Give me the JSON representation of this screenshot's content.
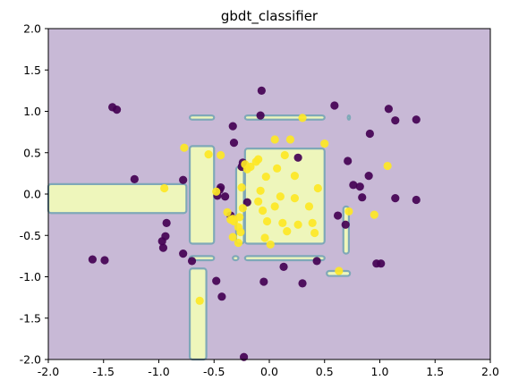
{
  "chart_data": {
    "type": "scatter",
    "title": "gbdt_classifier",
    "xlabel": "",
    "ylabel": "",
    "xlim": [
      -2.0,
      2.0
    ],
    "ylim": [
      -2.0,
      2.0
    ],
    "x_ticks": [
      "-2.0",
      "-1.5",
      "-1.0",
      "-0.5",
      "0.0",
      "0.5",
      "1.0",
      "1.5",
      "2.0"
    ],
    "y_ticks": [
      "2.0",
      "1.5",
      "1.0",
      "0.5",
      "0.0",
      "-0.5",
      "-1.0",
      "-1.5",
      "-2.0"
    ],
    "grid": false,
    "background_color": "#c8b9d6",
    "region_color": "#eef6bb",
    "contour_color": "#7fa8b8",
    "class0_color": "#440154",
    "class1_color": "#fde725",
    "decision_regions": [
      {
        "x": [
          -2.0,
          -0.75
        ],
        "y": [
          -0.23,
          0.12
        ]
      },
      {
        "x": [
          -0.72,
          -0.5
        ],
        "y": [
          -0.6,
          0.58
        ]
      },
      {
        "x": [
          -0.72,
          -0.57
        ],
        "y": [
          -2.0,
          -0.9
        ]
      },
      {
        "x": [
          -0.72,
          -0.5
        ],
        "y": [
          -0.8,
          -0.75
        ]
      },
      {
        "x": [
          -0.33,
          -0.28
        ],
        "y": [
          -0.8,
          -0.75
        ]
      },
      {
        "x": [
          -0.22,
          0.5
        ],
        "y": [
          -0.8,
          -0.75
        ]
      },
      {
        "x": [
          -0.72,
          -0.5
        ],
        "y": [
          0.9,
          0.95
        ]
      },
      {
        "x": [
          -0.22,
          0.5
        ],
        "y": [
          0.9,
          0.95
        ]
      },
      {
        "x": [
          0.71,
          0.73
        ],
        "y": [
          0.9,
          0.95
        ]
      },
      {
        "x": [
          -0.3,
          -0.23
        ],
        "y": [
          -0.6,
          0.33
        ]
      },
      {
        "x": [
          -0.22,
          0.5
        ],
        "y": [
          -0.6,
          0.55
        ]
      },
      {
        "x": [
          0.67,
          0.72
        ],
        "y": [
          -0.72,
          -0.15
        ]
      },
      {
        "x": [
          0.52,
          0.73
        ],
        "y": [
          -0.99,
          -0.93
        ]
      }
    ],
    "series": [
      {
        "class": 0,
        "points": [
          [
            -1.42,
            1.05
          ],
          [
            -1.38,
            1.02
          ],
          [
            -1.22,
            0.18
          ],
          [
            -0.97,
            -0.57
          ],
          [
            -0.96,
            -0.65
          ],
          [
            -0.94,
            -0.51
          ],
          [
            -0.93,
            -0.35
          ],
          [
            -0.78,
            0.17
          ],
          [
            -0.78,
            -0.72
          ],
          [
            -0.7,
            -0.81
          ],
          [
            -0.47,
            -0.02
          ],
          [
            -0.45,
            0.05
          ],
          [
            -0.44,
            0.08
          ],
          [
            -0.4,
            -0.03
          ],
          [
            -0.35,
            -0.26
          ],
          [
            -0.32,
            0.62
          ],
          [
            -0.33,
            0.82
          ],
          [
            -0.25,
            0.33
          ],
          [
            -0.2,
            -0.1
          ],
          [
            -0.08,
            0.95
          ],
          [
            -0.07,
            1.25
          ],
          [
            -0.05,
            -1.06
          ],
          [
            0.13,
            -0.88
          ],
          [
            0.3,
            -1.08
          ],
          [
            0.43,
            -0.81
          ],
          [
            0.59,
            1.07
          ],
          [
            0.62,
            -0.26
          ],
          [
            0.69,
            -0.37
          ],
          [
            0.71,
            0.4
          ],
          [
            0.76,
            0.11
          ],
          [
            0.82,
            0.09
          ],
          [
            0.84,
            -0.04
          ],
          [
            0.9,
            0.22
          ],
          [
            0.91,
            0.73
          ],
          [
            0.97,
            -0.84
          ],
          [
            1.01,
            -0.84
          ],
          [
            1.08,
            1.03
          ],
          [
            1.14,
            0.89
          ],
          [
            1.33,
            0.9
          ],
          [
            1.33,
            -0.07
          ],
          [
            1.14,
            -0.05
          ],
          [
            -1.49,
            -0.8
          ],
          [
            -1.6,
            -0.79
          ],
          [
            -0.43,
            -1.24
          ],
          [
            -0.23,
            -1.97
          ],
          [
            -0.48,
            -1.05
          ],
          [
            -0.24,
            0.38
          ],
          [
            0.26,
            0.44
          ]
        ]
      },
      {
        "class": 1,
        "points": [
          [
            -0.95,
            0.07
          ],
          [
            -0.77,
            0.56
          ],
          [
            -0.55,
            0.48
          ],
          [
            -0.44,
            0.47
          ],
          [
            -0.38,
            -0.22
          ],
          [
            -0.35,
            -0.31
          ],
          [
            -0.33,
            -0.52
          ],
          [
            -0.33,
            -0.3
          ],
          [
            -0.32,
            -0.33
          ],
          [
            -0.28,
            -0.59
          ],
          [
            -0.28,
            -0.4
          ],
          [
            -0.27,
            -0.28
          ],
          [
            -0.26,
            -0.46
          ],
          [
            -0.25,
            0.08
          ],
          [
            -0.22,
            0.36
          ],
          [
            -0.2,
            0.3
          ],
          [
            -0.17,
            0.33
          ],
          [
            -0.12,
            0.39
          ],
          [
            -0.1,
            0.42
          ],
          [
            -0.1,
            -0.09
          ],
          [
            -0.08,
            0.04
          ],
          [
            -0.06,
            -0.2
          ],
          [
            -0.04,
            -0.53
          ],
          [
            -0.02,
            -0.33
          ],
          [
            0.05,
            0.66
          ],
          [
            0.07,
            0.31
          ],
          [
            0.1,
            -0.03
          ],
          [
            0.12,
            -0.35
          ],
          [
            0.14,
            0.47
          ],
          [
            0.16,
            -0.45
          ],
          [
            0.19,
            0.66
          ],
          [
            0.23,
            0.22
          ],
          [
            0.26,
            -0.37
          ],
          [
            0.3,
            0.92
          ],
          [
            0.36,
            -0.15
          ],
          [
            0.39,
            -0.35
          ],
          [
            0.41,
            -0.47
          ],
          [
            0.44,
            0.07
          ],
          [
            0.5,
            0.61
          ],
          [
            0.72,
            -0.21
          ],
          [
            1.07,
            0.34
          ],
          [
            0.95,
            -0.25
          ],
          [
            0.63,
            -0.93
          ],
          [
            0.23,
            -0.05
          ],
          [
            -0.63,
            -1.29
          ],
          [
            -0.24,
            -0.17
          ],
          [
            0.01,
            -0.61
          ],
          [
            -0.48,
            0.03
          ],
          [
            0.05,
            -0.15
          ],
          [
            -0.03,
            0.21
          ]
        ]
      }
    ]
  }
}
